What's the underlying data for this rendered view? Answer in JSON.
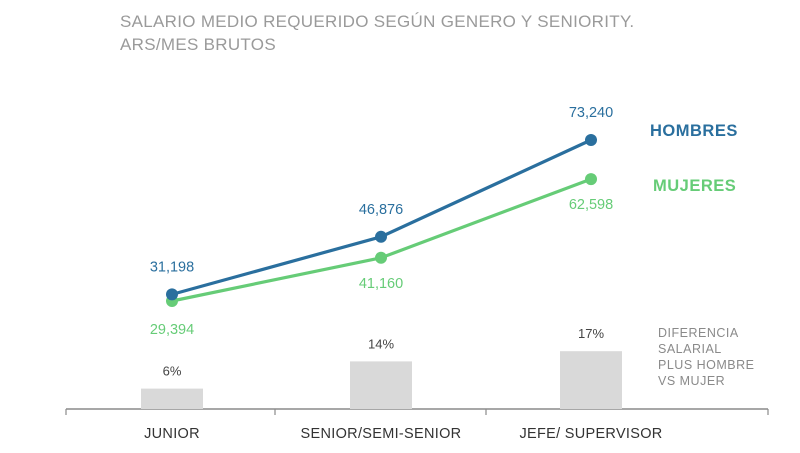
{
  "chart_data": {
    "type": "line",
    "title_lines": [
      "SALARIO MEDIO REQUERIDO SEGÚN GENERO Y SENIORITY.",
      "ARS/MES BRUTOS"
    ],
    "categories": [
      "JUNIOR",
      "SENIOR/SEMI-SENIOR",
      "JEFE/ SUPERVISOR"
    ],
    "series": [
      {
        "name": "HOMBRES",
        "values": [
          31198,
          46876,
          73240
        ],
        "labels": [
          "31,198",
          "46,876",
          "73,240"
        ],
        "color": "#2a6f9e"
      },
      {
        "name": "MUJERES",
        "values": [
          29394,
          41160,
          62598
        ],
        "labels": [
          "29,394",
          "41,160",
          "62,598"
        ],
        "color": "#66cc77"
      }
    ],
    "difference": {
      "type": "bar",
      "values": [
        6,
        14,
        17
      ],
      "labels": [
        "6%",
        "14%",
        "17%"
      ],
      "color": "#d9d9d9",
      "legend_lines": [
        "DIFERENCIA",
        "SALARIAL",
        "PLUS HOMBRE",
        "VS MUJER"
      ]
    },
    "grid": false,
    "legend_placement": "right"
  }
}
